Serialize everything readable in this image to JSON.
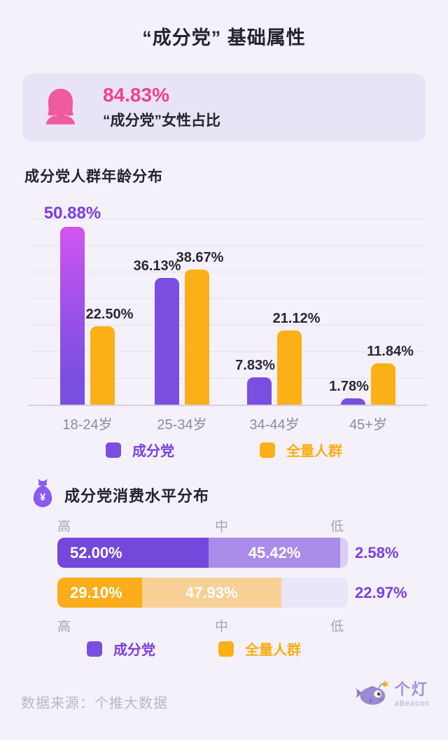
{
  "page": {
    "title": "“成分党” 基础属性"
  },
  "gender_card": {
    "value": "84.83%",
    "label": "“成分党”女性占比",
    "icon": "female-icon"
  },
  "chart_data": [
    {
      "type": "bar",
      "title": "成分党人群年龄分布",
      "categories": [
        "18-24岁",
        "25-34岁",
        "34-44岁",
        "45+岁"
      ],
      "series": [
        {
          "name": "成分党",
          "values": [
            50.88,
            36.13,
            7.83,
            1.78
          ],
          "labels": [
            "50.88%",
            "36.13%",
            "7.83%",
            "1.78%"
          ],
          "color": "#7B4EE2"
        },
        {
          "name": "全量人群",
          "values": [
            22.5,
            38.67,
            21.12,
            11.84
          ],
          "labels": [
            "22.50%",
            "38.67%",
            "21.12%",
            "11.84%"
          ],
          "color": "#FBB018"
        }
      ],
      "unit": "%",
      "ylim": [
        0,
        55
      ],
      "grid": true,
      "legend_position": "bottom",
      "highlight": "first purple bar drawn with magenta-to-purple gradient and purple value label"
    },
    {
      "type": "bar",
      "variant": "stacked-horizontal",
      "title": "成分党消费水平分布",
      "categories": [
        "高",
        "中",
        "低"
      ],
      "series": [
        {
          "name": "成分党",
          "values": [
            52.0,
            45.42,
            2.58
          ],
          "labels": [
            "52.00%",
            "45.42%",
            "2.58%"
          ],
          "segment_colors": [
            "#7448DB",
            "#A98CE8",
            "#D9CEF4"
          ]
        },
        {
          "name": "全量人群",
          "values": [
            29.1,
            47.93,
            22.97
          ],
          "labels": [
            "29.10%",
            "47.93%",
            "22.97%"
          ],
          "segment_colors": [
            "#FBAD1B",
            "#F7D096",
            "#EAE5F8"
          ]
        }
      ],
      "unit": "%",
      "legend_position": "bottom"
    }
  ],
  "legend": {
    "items": [
      {
        "label": "成分党",
        "swatch_color": "#7B4EE2",
        "text_color": "#7B3FE0"
      },
      {
        "label": "全量人群",
        "swatch_color": "#FBB018",
        "text_color": "#FBAE15"
      }
    ]
  },
  "footer": {
    "source": "数据来源：个推大数据",
    "logo_icon": "anglerfish-lantern-icon",
    "logo_text": "个灯",
    "logo_subtext": "aBeacon"
  },
  "colors": {
    "background": "#F4F1FA",
    "card_bg": "#E9E3F6",
    "pink": "#F0418C",
    "pink_icon": "#EF5B9C",
    "purple": "#7B4EE2",
    "purple_gradient_top": "#D254F0",
    "purple_label": "#7C3BE8",
    "purple_text": "#7B3FE0",
    "yellow": "#FBB018",
    "yellow_text": "#FBAE15",
    "dark_text": "#25232C",
    "gray_text": "#8F8B9C",
    "light_gray_text": "#A8A4B4",
    "footer_text": "#BBB7C4",
    "grid_line": "#E4DFEE",
    "axis_line": "#D5CFE0",
    "icon_purple": "#8A5BF0",
    "logo_purple": "#9C8AD6",
    "logo_text": "#A393D8",
    "logo_subtext": "#B5AADF",
    "lure_yellow": "#F2B21C"
  }
}
